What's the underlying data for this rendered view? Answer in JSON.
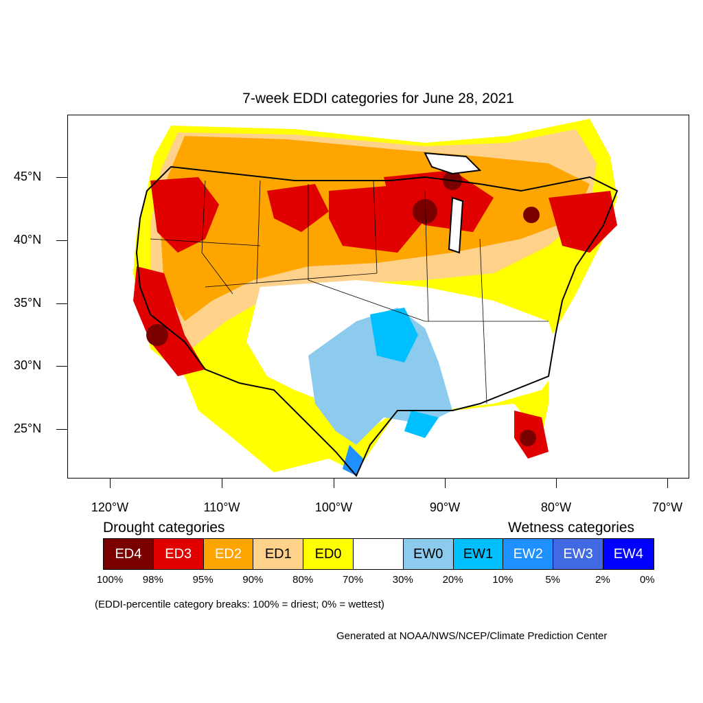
{
  "title": "7-week EDDI categories for June 28, 2021",
  "latitude_labels": [
    "45°N",
    "40°N",
    "35°N",
    "30°N",
    "25°N"
  ],
  "longitude_labels": [
    "120°W",
    "110°W",
    "100°W",
    "90°W",
    "80°W",
    "70°W"
  ],
  "drought_title": "Drought categories",
  "wetness_title": "Wetness categories",
  "legend": [
    {
      "label": "ED4",
      "color": "#7a0000",
      "text_color": "#ffffff"
    },
    {
      "label": "ED3",
      "color": "#e00000",
      "text_color": "#ffffff"
    },
    {
      "label": "ED2",
      "color": "#ffa500",
      "text_color": "#ffffff"
    },
    {
      "label": "ED1",
      "color": "#ffd28c",
      "text_color": "#000000"
    },
    {
      "label": "ED0",
      "color": "#ffff00",
      "text_color": "#000000"
    },
    {
      "label": "",
      "color": "#ffffff",
      "text_color": "#000000"
    },
    {
      "label": "EW0",
      "color": "#8ccbee",
      "text_color": "#000000"
    },
    {
      "label": "EW1",
      "color": "#00bfff",
      "text_color": "#000000"
    },
    {
      "label": "EW2",
      "color": "#1e90ff",
      "text_color": "#ffffff"
    },
    {
      "label": "EW3",
      "color": "#4169e1",
      "text_color": "#ffffff"
    },
    {
      "label": "EW4",
      "color": "#0000ff",
      "text_color": "#ffffff"
    }
  ],
  "percentile_breaks": [
    "100%",
    "98%",
    "95%",
    "90%",
    "80%",
    "70%",
    "30%",
    "20%",
    "10%",
    "5%",
    "2%",
    "0%"
  ],
  "note": "(EDDI-percentile category breaks: 100% = driest; 0% = wettest)",
  "credit": "Generated at NOAA/NWS/NCEP/Climate Prediction Center"
}
